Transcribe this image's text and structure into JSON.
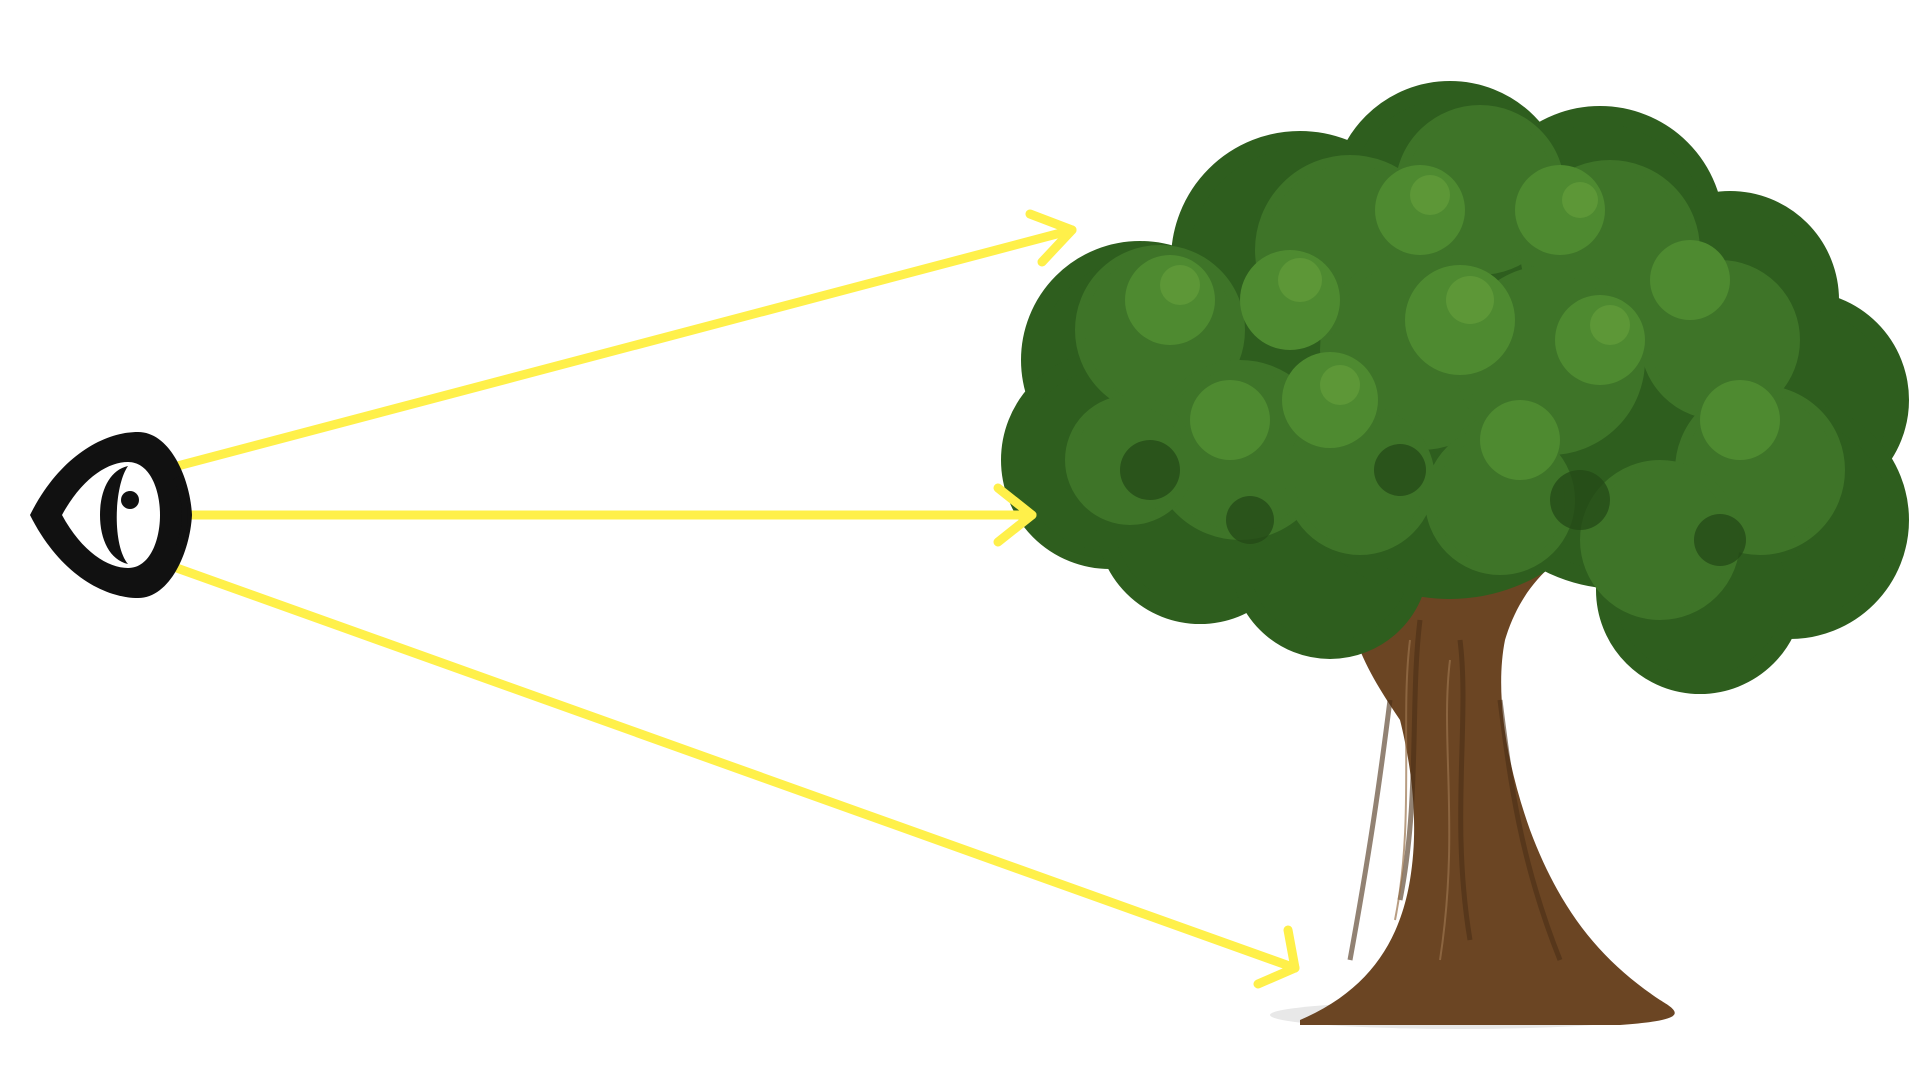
{
  "diagram": {
    "background": "#ffffff",
    "nodes": [
      {
        "id": "eye",
        "icon": "eye-icon",
        "color": "#111111"
      },
      {
        "id": "tree",
        "icon": "tree-icon",
        "foliage_colors": [
          "#2E5E1E",
          "#3E7428",
          "#4E8A30",
          "#6AA23E"
        ],
        "trunk_color": "#6B4523"
      }
    ],
    "edges": [
      {
        "from": "eye",
        "to": "tree-canopy-top",
        "color": "#FFF04A"
      },
      {
        "from": "eye",
        "to": "tree-canopy-middle",
        "color": "#FFF04A"
      },
      {
        "from": "eye",
        "to": "tree-base",
        "color": "#FFF04A"
      }
    ]
  }
}
